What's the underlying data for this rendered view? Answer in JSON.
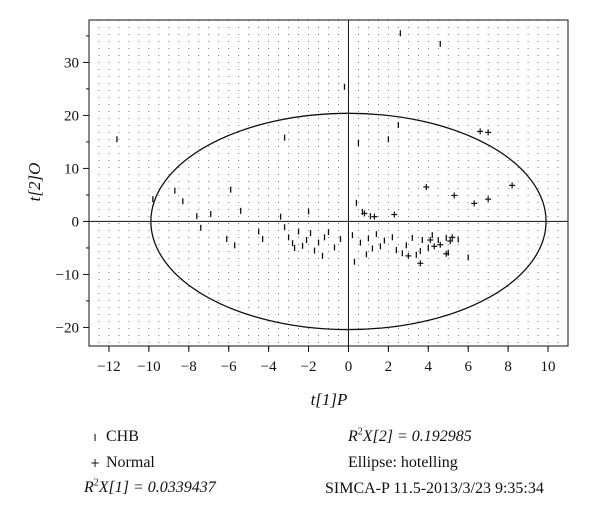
{
  "chart_data": {
    "type": "scatter",
    "xlabel": "t[1]P",
    "ylabel": "t[2]O",
    "xlim": [
      -13,
      11
    ],
    "ylim": [
      -23.5,
      38
    ],
    "x_ticks": [
      -12,
      -10,
      -8,
      -6,
      -4,
      -2,
      0,
      2,
      4,
      6,
      8,
      10
    ],
    "y_ticks": [
      -20,
      -10,
      0,
      10,
      20,
      30
    ],
    "grid": true,
    "ellipse": {
      "type": "hotelling",
      "center": [
        0,
        0
      ],
      "rx": 9.9,
      "ry": 20.4
    },
    "series": [
      {
        "name": "CHB",
        "marker": "|",
        "points": [
          [
            -11.6,
            15.5
          ],
          [
            -9.8,
            4.2
          ],
          [
            -8.7,
            5.8
          ],
          [
            -8.3,
            3.8
          ],
          [
            -7.6,
            1.0
          ],
          [
            -7.4,
            -1.2
          ],
          [
            -6.9,
            1.4
          ],
          [
            -6.1,
            -3.3
          ],
          [
            -5.9,
            6.0
          ],
          [
            -5.7,
            -4.5
          ],
          [
            -5.4,
            2.0
          ],
          [
            -4.5,
            -1.9
          ],
          [
            -4.3,
            -3.3
          ],
          [
            -3.4,
            0.9
          ],
          [
            -3.2,
            15.8
          ],
          [
            -3.2,
            -1.1
          ],
          [
            -3.0,
            -3.0
          ],
          [
            -2.8,
            -4.1
          ],
          [
            -2.7,
            -5.0
          ],
          [
            -2.5,
            -1.9
          ],
          [
            -2.3,
            -4.6
          ],
          [
            -2.1,
            -3.5
          ],
          [
            -2.0,
            1.9
          ],
          [
            -1.9,
            -2.2
          ],
          [
            -1.7,
            -5.5
          ],
          [
            -1.5,
            -4.0
          ],
          [
            -1.3,
            -6.5
          ],
          [
            -1.2,
            -3.0
          ],
          [
            -1.0,
            -2.0
          ],
          [
            -0.7,
            -4.9
          ],
          [
            -0.4,
            -3.3
          ],
          [
            -0.2,
            25.4
          ],
          [
            0.2,
            -2.6
          ],
          [
            0.3,
            -7.6
          ],
          [
            0.4,
            3.5
          ],
          [
            0.5,
            14.8
          ],
          [
            0.6,
            -4.0
          ],
          [
            0.7,
            1.8
          ],
          [
            0.9,
            -6.2
          ],
          [
            1.0,
            -3.2
          ],
          [
            1.1,
            1.0
          ],
          [
            1.2,
            -5.1
          ],
          [
            1.4,
            -2.4
          ],
          [
            1.6,
            -4.7
          ],
          [
            1.8,
            -3.6
          ],
          [
            2.0,
            15.5
          ],
          [
            2.2,
            -3.0
          ],
          [
            2.4,
            -5.4
          ],
          [
            2.5,
            18.2
          ],
          [
            2.6,
            35.5
          ],
          [
            2.7,
            -6.0
          ],
          [
            2.9,
            -4.5
          ],
          [
            3.2,
            -3.1
          ],
          [
            3.4,
            -6.3
          ],
          [
            3.6,
            -5.6
          ],
          [
            3.7,
            -3.5
          ],
          [
            4.0,
            -5.0
          ],
          [
            4.2,
            -2.6
          ],
          [
            4.5,
            -3.5
          ],
          [
            4.6,
            33.5
          ],
          [
            4.9,
            -3.1
          ],
          [
            5.0,
            -5.9
          ],
          [
            5.5,
            -3.4
          ],
          [
            6.0,
            -6.8
          ]
        ]
      },
      {
        "name": "Normal",
        "marker": "+",
        "points": [
          [
            0.8,
            1.5
          ],
          [
            1.3,
            0.9
          ],
          [
            2.3,
            1.3
          ],
          [
            3.0,
            -6.5
          ],
          [
            3.6,
            -7.9
          ],
          [
            3.9,
            6.5
          ],
          [
            4.1,
            -3.5
          ],
          [
            4.3,
            -4.7
          ],
          [
            4.6,
            -4.4
          ],
          [
            4.9,
            -6.1
          ],
          [
            5.1,
            -3.7
          ],
          [
            5.2,
            -3.0
          ],
          [
            5.3,
            4.9
          ],
          [
            6.3,
            3.4
          ],
          [
            6.6,
            17.0
          ],
          [
            7.0,
            16.8
          ],
          [
            7.0,
            4.2
          ],
          [
            8.2,
            6.8
          ]
        ]
      }
    ]
  },
  "footer": {
    "legend_chb": "CHB",
    "legend_normal": "Normal",
    "r2x1_label": "R",
    "r2x1_sup": "2",
    "r2x1_rest": "X[1] = 0.0339437",
    "r2x2_label": "R",
    "r2x2_sup": "2",
    "r2x2_rest": "X[2] = 0.192985",
    "ellipse_text": "Ellipse: hotelling",
    "software_text": "SIMCA-P 11.5-2013/3/23 9:35:34"
  }
}
